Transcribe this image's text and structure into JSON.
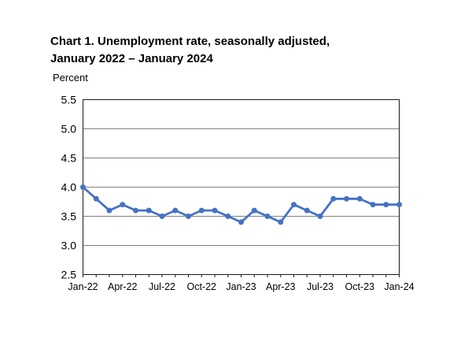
{
  "header": {
    "title_line1": "Chart 1. Unemployment rate, seasonally adjusted,",
    "title_line2": "January 2022 – January 2024",
    "unit_label": "Percent"
  },
  "chart_data": {
    "type": "line",
    "title": "Chart 1. Unemployment rate, seasonally adjusted, January 2022 – January 2024",
    "ylabel": "Percent",
    "xlabel": "",
    "x": [
      "Jan-22",
      "Feb-22",
      "Mar-22",
      "Apr-22",
      "May-22",
      "Jun-22",
      "Jul-22",
      "Aug-22",
      "Sep-22",
      "Oct-22",
      "Nov-22",
      "Dec-22",
      "Jan-23",
      "Feb-23",
      "Mar-23",
      "Apr-23",
      "May-23",
      "Jun-23",
      "Jul-23",
      "Aug-23",
      "Sep-23",
      "Oct-23",
      "Nov-23",
      "Dec-23",
      "Jan-24"
    ],
    "series": [
      {
        "name": "Unemployment rate",
        "values": [
          4.0,
          3.8,
          3.6,
          3.7,
          3.6,
          3.6,
          3.5,
          3.6,
          3.5,
          3.6,
          3.6,
          3.5,
          3.4,
          3.6,
          3.5,
          3.4,
          3.7,
          3.6,
          3.5,
          3.8,
          3.8,
          3.8,
          3.7,
          3.7,
          3.7
        ],
        "color": "#4472C4"
      }
    ],
    "ylim": [
      2.5,
      5.5
    ],
    "yticks": [
      2.5,
      3.0,
      3.5,
      4.0,
      4.5,
      5.0,
      5.5
    ],
    "xtick_labels": [
      "Jan-22",
      "Apr-22",
      "Jul-22",
      "Oct-22",
      "Jan-23",
      "Apr-23",
      "Jul-23",
      "Oct-23",
      "Jan-24"
    ],
    "xtick_every": 3,
    "grid": "horizontal",
    "legend": "none",
    "marker": "circle",
    "gridline_color": "#808080",
    "axis_color": "#1a1a1a",
    "text_color": "#000000"
  }
}
